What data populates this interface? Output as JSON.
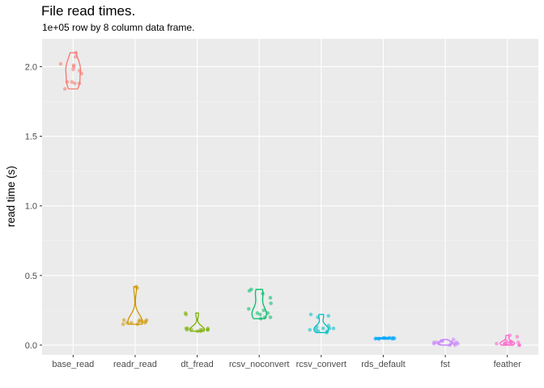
{
  "chart_data": {
    "type": "violin",
    "title": "File read times.",
    "subtitle": "1e+05 row by 8 column data frame.",
    "xlabel": "",
    "ylabel": "read time (s)",
    "ylim": [
      -0.07,
      2.2
    ],
    "y_ticks": [
      0.0,
      0.5,
      1.0,
      1.5,
      2.0
    ],
    "y_tick_labels": [
      "0.0",
      "0.5",
      "1.0",
      "1.5",
      "2.0"
    ],
    "grid": true,
    "categories": [
      "base_read",
      "readr_read",
      "dt_fread",
      "rcsv_noconvert",
      "rcsv_convert",
      "rds_default",
      "fst",
      "feather"
    ],
    "colors": [
      "#F8766D",
      "#CD9600",
      "#7CAE00",
      "#00BE67",
      "#00BFC4",
      "#00A9FF",
      "#C77CFF",
      "#FF61CC"
    ],
    "series": [
      {
        "category": "base_read",
        "values": [
          1.84,
          1.88,
          1.88,
          1.89,
          1.89,
          1.95,
          1.97,
          1.98,
          2.0,
          2.01,
          2.02,
          2.07,
          2.1
        ]
      },
      {
        "category": "readr_read",
        "values": [
          0.15,
          0.15,
          0.16,
          0.16,
          0.16,
          0.17,
          0.17,
          0.17,
          0.18,
          0.18,
          0.18,
          0.41,
          0.42
        ]
      },
      {
        "category": "dt_fread",
        "values": [
          0.1,
          0.1,
          0.11,
          0.11,
          0.11,
          0.11,
          0.11,
          0.11,
          0.12,
          0.12,
          0.12,
          0.22,
          0.23
        ]
      },
      {
        "category": "rcsv_noconvert",
        "values": [
          0.19,
          0.2,
          0.2,
          0.22,
          0.23,
          0.23,
          0.25,
          0.26,
          0.3,
          0.34,
          0.37,
          0.39,
          0.4
        ]
      },
      {
        "category": "rcsv_convert",
        "values": [
          0.09,
          0.1,
          0.1,
          0.11,
          0.11,
          0.12,
          0.12,
          0.12,
          0.13,
          0.14,
          0.2,
          0.21,
          0.22
        ]
      },
      {
        "category": "rds_default",
        "values": [
          0.045,
          0.045,
          0.046,
          0.047,
          0.048,
          0.048,
          0.049,
          0.049,
          0.05,
          0.05,
          0.051,
          0.052,
          0.053
        ]
      },
      {
        "category": "fst",
        "values": [
          0.0,
          0.0,
          0.01,
          0.01,
          0.01,
          0.01,
          0.02,
          0.02,
          0.02,
          0.02,
          0.03,
          0.03,
          0.04
        ]
      },
      {
        "category": "feather",
        "values": [
          0.0,
          0.0,
          0.01,
          0.01,
          0.01,
          0.01,
          0.01,
          0.02,
          0.02,
          0.02,
          0.03,
          0.06,
          0.07
        ]
      }
    ]
  }
}
